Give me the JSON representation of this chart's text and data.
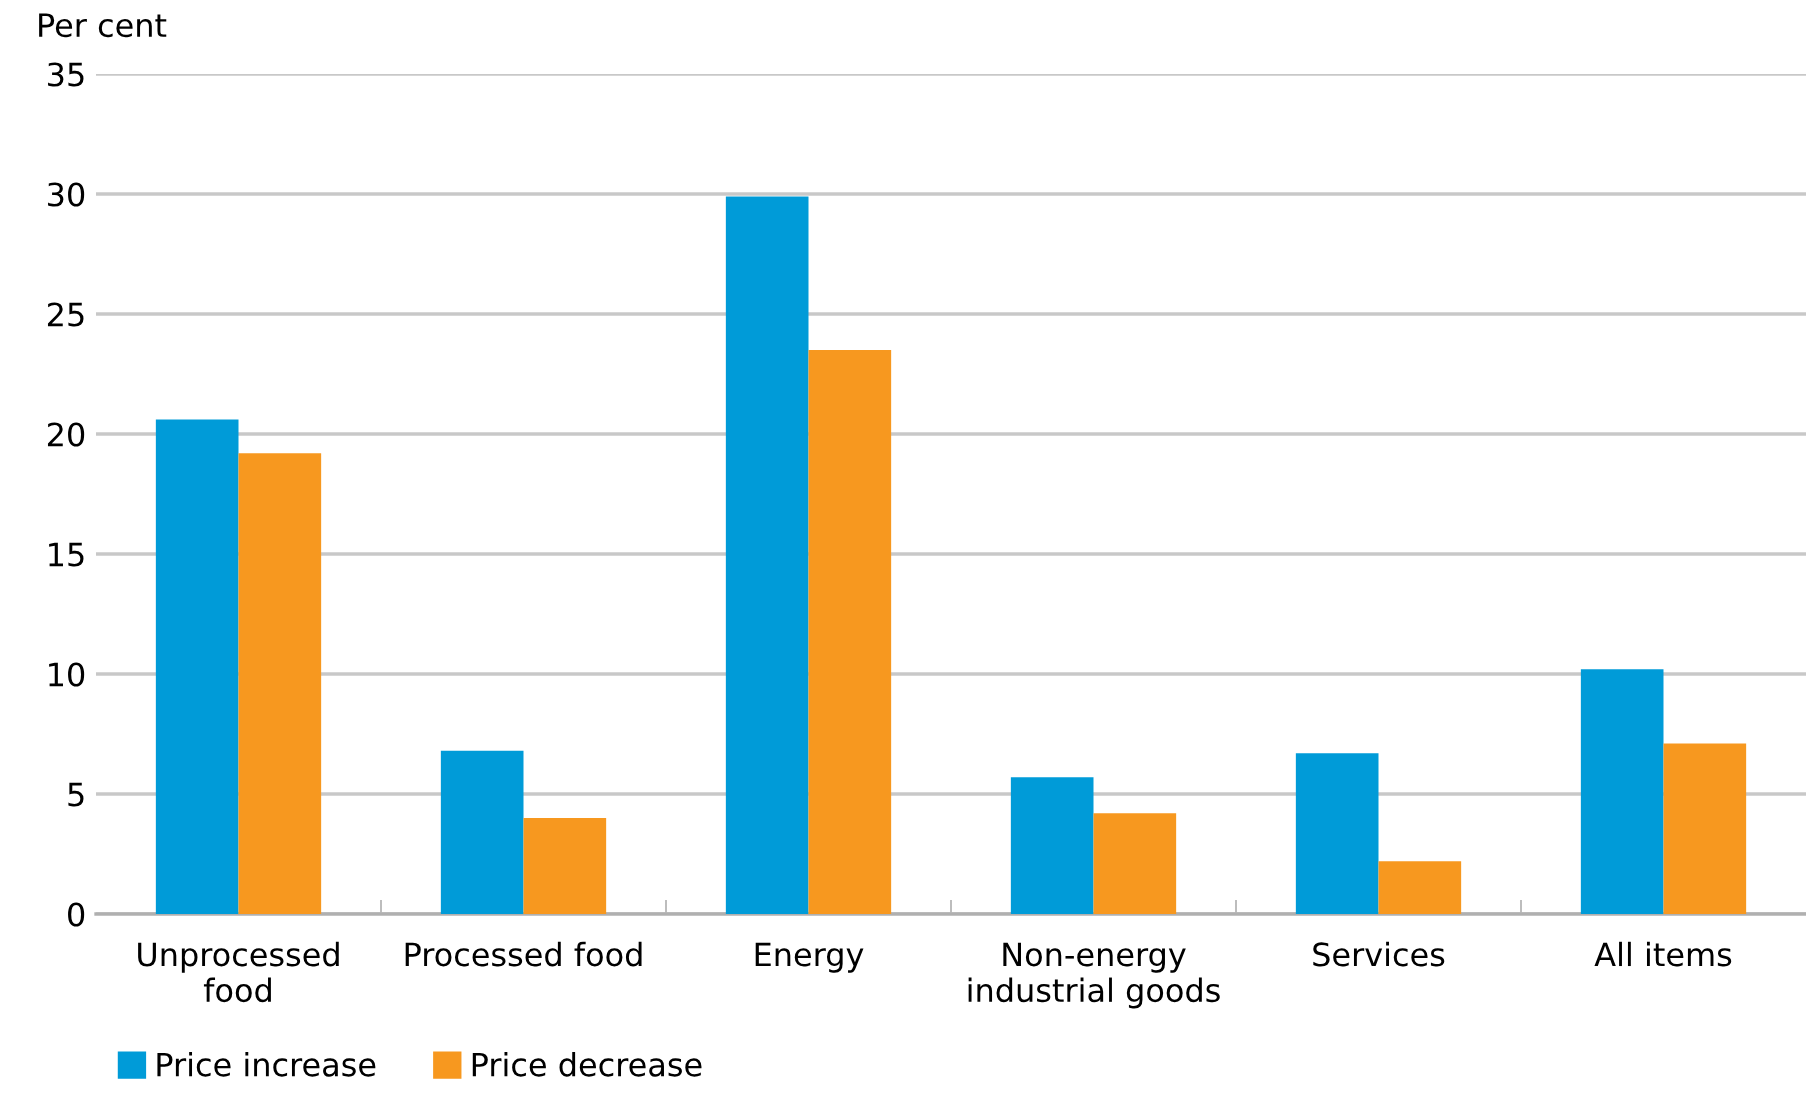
{
  "chart_data": {
    "type": "bar",
    "ylabel": "Per cent",
    "categories": [
      "Unprocessed\nfood",
      "Processed food",
      "Energy",
      "Non-energy\nindustrial goods",
      "Services",
      "All items"
    ],
    "series": [
      {
        "name": "Price increase",
        "color": "#009bd8",
        "values": [
          20.6,
          6.8,
          29.9,
          5.7,
          6.7,
          10.2
        ]
      },
      {
        "name": "Price decrease",
        "color": "#f7981f",
        "values": [
          19.2,
          4.0,
          23.5,
          4.2,
          2.2,
          7.1
        ]
      }
    ],
    "ylim": [
      0,
      35
    ],
    "yticks": [
      0,
      5,
      10,
      15,
      20,
      25,
      30,
      35
    ],
    "grid": "y",
    "legend": "bottom left"
  }
}
